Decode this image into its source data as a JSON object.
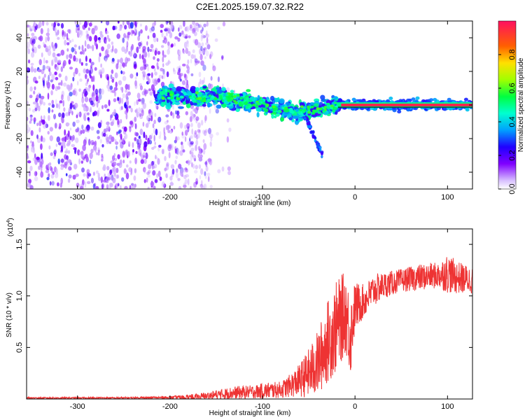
{
  "title": "C2E1.2025.159.07.32.R22",
  "chart_data": [
    {
      "type": "heatmap",
      "name": "spectrogram",
      "xlabel": "Height of straight line (km)",
      "ylabel": "Frequency (Hz)",
      "xlim": [
        -355,
        127
      ],
      "ylim": [
        -50,
        50
      ],
      "xticks": [
        -300,
        -200,
        -100,
        0,
        100
      ],
      "yticks": [
        -40,
        -20,
        0,
        20,
        40
      ],
      "x_tick_labels": [
        "-300",
        "-200",
        "-100",
        "0",
        "100"
      ],
      "y_tick_labels": [
        "-40",
        "-20",
        "0",
        "20",
        "40"
      ],
      "colorbar": {
        "label": "Normalized spectral amplitude",
        "range": [
          0,
          1
        ],
        "ticks": [
          0.0,
          0.2,
          0.4,
          0.6,
          0.8
        ],
        "tick_labels": [
          "0.0",
          "0.2",
          "0.4",
          "0.6",
          "0.8"
        ]
      },
      "description_points": [
        {
          "x": -355,
          "x_end": -165,
          "f": 0,
          "spread_hz": 50,
          "amplitude": 0.15
        },
        {
          "x": -210,
          "f": 5,
          "amplitude": 0.35
        },
        {
          "x": -150,
          "f": 5,
          "amplitude": 0.4
        },
        {
          "x": -100,
          "f": 0,
          "amplitude": 0.45
        },
        {
          "x": -60,
          "f": -5,
          "amplitude": 0.5
        },
        {
          "x": -55,
          "f": 10,
          "amplitude": 0.55
        },
        {
          "x": -15,
          "x_end": 127,
          "f": 0,
          "amplitude": 0.95
        }
      ]
    },
    {
      "type": "line",
      "name": "snr",
      "xlabel": "Height of straight line (km)",
      "ylabel": "SNR (10 * v/v)",
      "y_scale_label": "(x10",
      "y_scale_exponent": "4",
      "xlim": [
        -355,
        127
      ],
      "ylim": [
        0,
        1.65
      ],
      "xticks": [
        -300,
        -200,
        -100,
        0,
        100
      ],
      "yticks": [
        0.5,
        1.0,
        1.5
      ],
      "x_tick_labels": [
        "-300",
        "-200",
        "-100",
        "0",
        "100"
      ],
      "y_tick_labels": [
        "0.5",
        "1.0",
        "1.5"
      ],
      "series": [
        {
          "name": "SNR",
          "color": "#ee3333",
          "x": [
            -355,
            -300,
            -250,
            -200,
            -170,
            -150,
            -130,
            -110,
            -95,
            -80,
            -70,
            -60,
            -50,
            -40,
            -30,
            -20,
            -10,
            -5,
            0,
            10,
            20,
            30,
            50,
            70,
            90,
            100,
            110,
            127
          ],
          "y": [
            0.01,
            0.01,
            0.01,
            0.015,
            0.02,
            0.04,
            0.06,
            0.07,
            0.08,
            0.09,
            0.13,
            0.18,
            0.25,
            0.35,
            0.55,
            0.7,
            0.85,
            0.6,
            0.9,
            0.95,
            1.05,
            1.1,
            1.15,
            1.18,
            1.2,
            1.22,
            1.18,
            1.15
          ],
          "noise": [
            0.005,
            0.005,
            0.006,
            0.008,
            0.02,
            0.03,
            0.04,
            0.04,
            0.05,
            0.05,
            0.07,
            0.1,
            0.15,
            0.2,
            0.25,
            0.28,
            0.25,
            0.25,
            0.15,
            0.1,
            0.1,
            0.08,
            0.07,
            0.08,
            0.08,
            0.12,
            0.1,
            0.08
          ]
        }
      ]
    }
  ]
}
